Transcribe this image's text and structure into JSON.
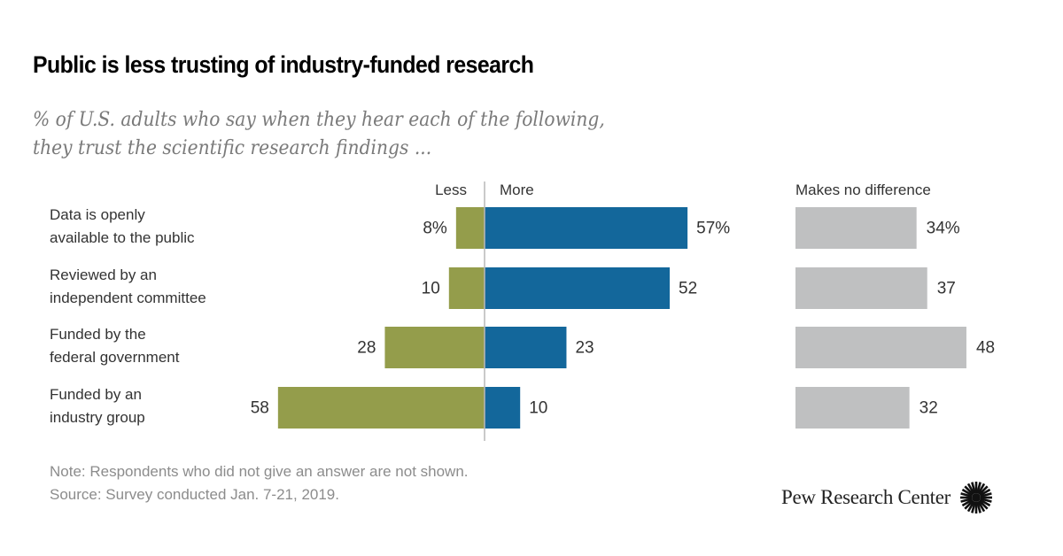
{
  "header": {
    "title": "Public is less trusting of industry-funded research",
    "subtitle_lines": [
      "% of U.S. adults who say when they hear each of the following,",
      "they trust the scientific research findings ..."
    ]
  },
  "chart_data": {
    "type": "bar",
    "orientation": "horizontal",
    "layout": "diverging + separate",
    "title": "Public is less trusting of industry-funded research",
    "subtitle": "% of U.S. adults who say when they hear each of the following, they trust the scientific research findings ...",
    "categories": [
      [
        "Data is openly",
        "available to the public"
      ],
      [
        "Reviewed by an",
        "independent committee"
      ],
      [
        "Funded by the",
        "federal government"
      ],
      [
        "Funded by an",
        "industry group"
      ]
    ],
    "series": [
      {
        "name": "Less",
        "values": [
          8,
          10,
          28,
          58
        ],
        "labels": [
          "8%",
          "10",
          "28",
          "58"
        ],
        "color": "#949d4b",
        "side": "left"
      },
      {
        "name": "More",
        "values": [
          57,
          52,
          23,
          10
        ],
        "labels": [
          "57%",
          "52",
          "23",
          "10"
        ],
        "color": "#13679b",
        "side": "right"
      },
      {
        "name": "Makes no difference",
        "values": [
          34,
          37,
          48,
          32
        ],
        "labels": [
          "34%",
          "37",
          "48",
          "32"
        ],
        "color": "#bfc0c1",
        "side": "separate"
      }
    ],
    "xlabel": "",
    "ylabel": "",
    "unit": "%",
    "grid": false,
    "legend": "column headers"
  },
  "footer": {
    "note": "Note: Respondents who did not give an answer are not shown.",
    "source": "Source: Survey conducted Jan. 7-21, 2019.",
    "logo_text": "Pew Research Center",
    "logo_icon": "pew-sunburst-icon"
  }
}
